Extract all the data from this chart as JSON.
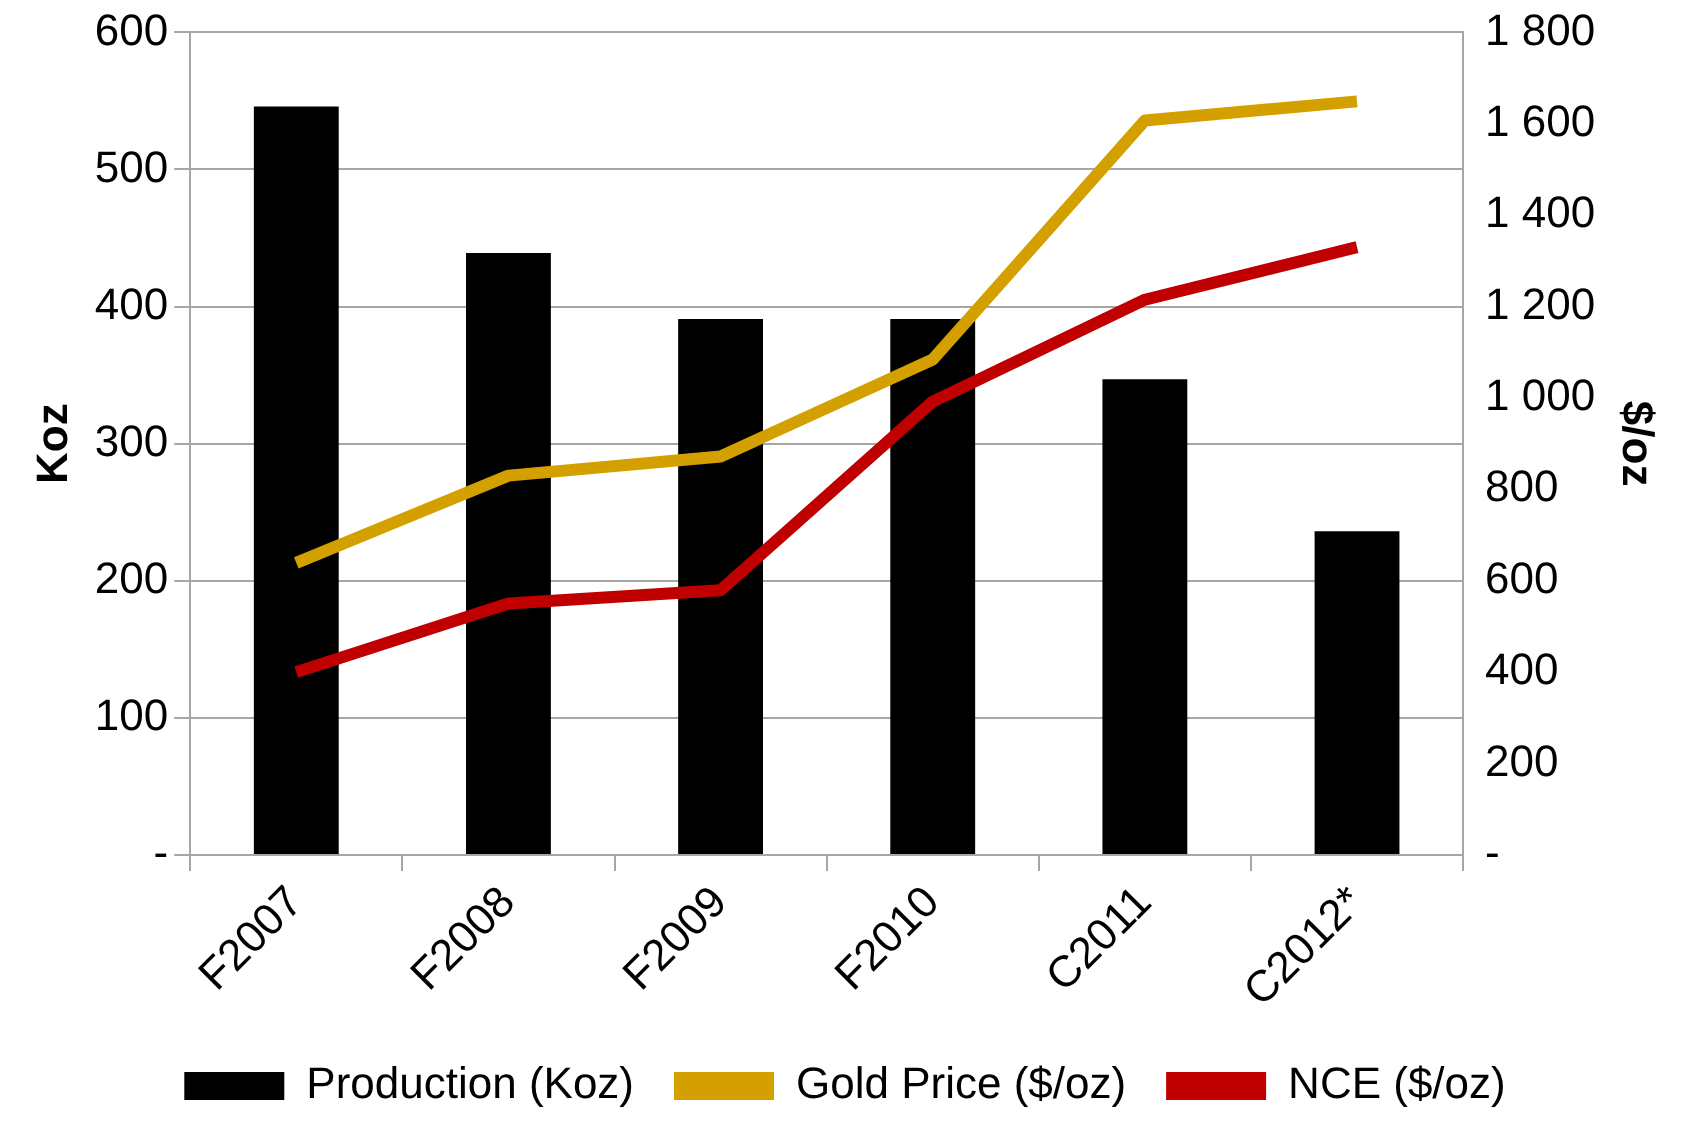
{
  "chart_data": {
    "type": "bar",
    "ylabel": "Koz",
    "y2label": "$/oz",
    "categories": [
      "F2007",
      "F2008",
      "F2009",
      "F2010",
      "C2011",
      "C2012*"
    ],
    "series": [
      {
        "name": "Production (Koz)",
        "color": "#000000",
        "values": [
          546,
          439,
          391,
          391,
          347,
          236
        ]
      },
      {
        "name": "Gold Price ($/oz)",
        "type": "line",
        "axis": "y2",
        "color": "#d4a000",
        "values": [
          639,
          830,
          872,
          1084,
          1607,
          1649
        ]
      },
      {
        "name": "NCE ($/oz)",
        "type": "line",
        "axis": "y2",
        "color": "#c00000",
        "values": [
          400,
          550,
          579,
          992,
          1215,
          1330
        ]
      }
    ],
    "ylim": [
      0,
      600
    ],
    "yticks": [
      {
        "value": 0,
        "label": "-"
      },
      100,
      200,
      300,
      400,
      500,
      600
    ],
    "y2lim": [
      0,
      1800
    ],
    "y2ticks": [
      {
        "value": 0,
        "label": "-"
      },
      {
        "value": 200,
        "label": "200"
      },
      {
        "value": 400,
        "label": "400"
      },
      {
        "value": 600,
        "label": "600"
      },
      {
        "value": 800,
        "label": "800"
      },
      {
        "value": 1000,
        "label": "1 000"
      },
      {
        "value": 1200,
        "label": "1 200"
      },
      {
        "value": 1400,
        "label": "1 400"
      },
      {
        "value": 1600,
        "label": "1 600"
      },
      {
        "value": 1800,
        "label": "1 800"
      }
    ],
    "grid": "y",
    "legend": "bottom",
    "marker": "none",
    "line_style": "solid"
  }
}
